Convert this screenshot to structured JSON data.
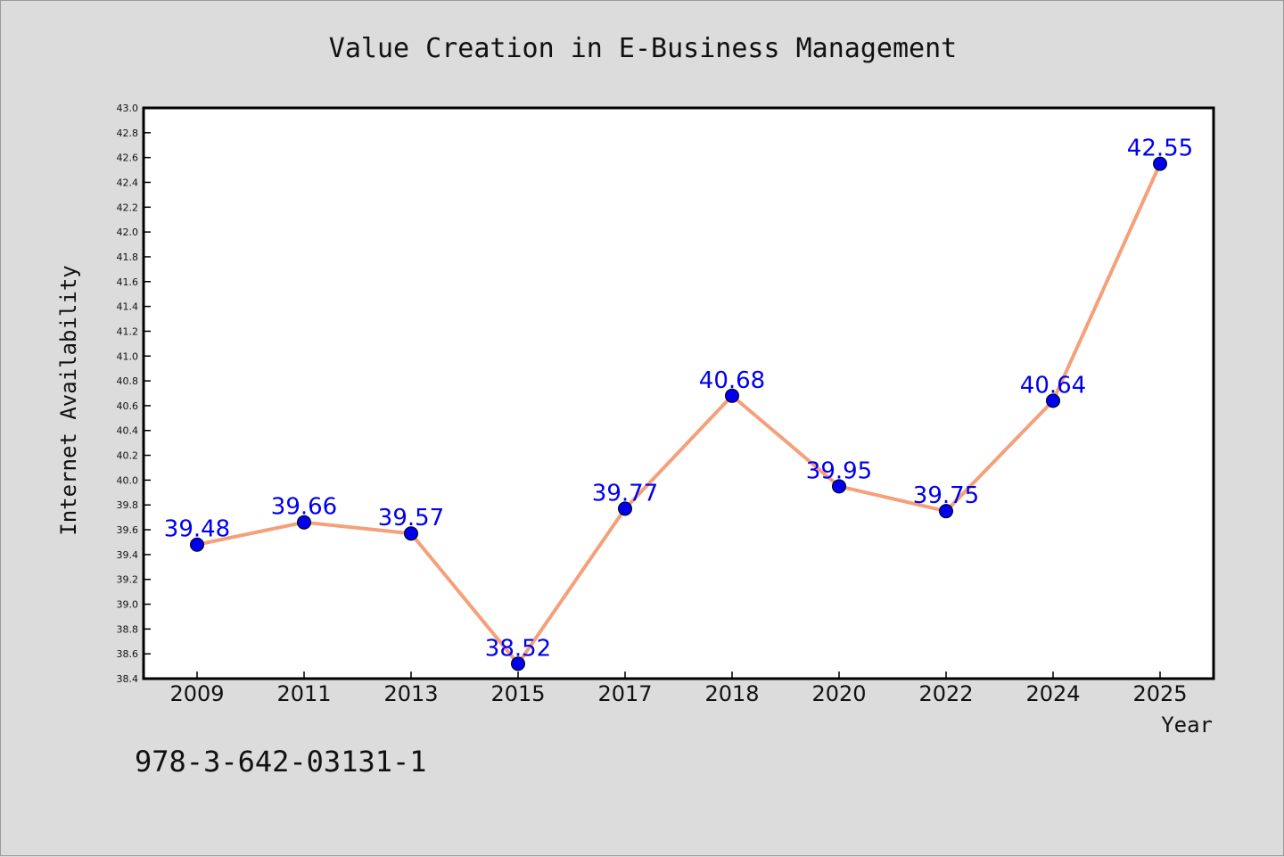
{
  "chart_data": {
    "type": "line",
    "title": "Value Creation in E-Business Management",
    "xlabel": "Year",
    "ylabel": "Internet Availability",
    "categories": [
      "2009",
      "2011",
      "2013",
      "2015",
      "2017",
      "2018",
      "2020",
      "2022",
      "2024",
      "2025"
    ],
    "series": [
      {
        "values": [
          39.48,
          39.66,
          39.57,
          38.52,
          39.77,
          40.68,
          39.95,
          39.75,
          40.64,
          42.55
        ],
        "data_labels": [
          "39.48",
          "39.66",
          "39.57",
          "38.52",
          "39.77",
          "40.68",
          "39.95",
          "39.75",
          "40.64",
          "42.55"
        ],
        "line_color": "#f4a07a",
        "marker_color": "#0000ee"
      }
    ],
    "ylim": [
      38.4,
      43.0
    ],
    "yticks": [
      "38.4",
      "38.6",
      "38.8",
      "39.0",
      "39.2",
      "39.4",
      "39.6",
      "39.8",
      "40.0",
      "40.2",
      "40.4",
      "40.6",
      "40.8",
      "41.0",
      "41.2",
      "41.4",
      "41.6",
      "41.8",
      "42.0",
      "42.2",
      "42.4",
      "42.6",
      "42.8",
      "43.0"
    ],
    "grid": false,
    "legend": "none"
  },
  "footer": {
    "code": "978-3-642-03131-1"
  },
  "colors": {
    "background": "#dcdcdc",
    "plot_background": "#ffffff",
    "line": "#f4a07a",
    "marker": "#0000ee",
    "data_label": "#0000ee"
  }
}
